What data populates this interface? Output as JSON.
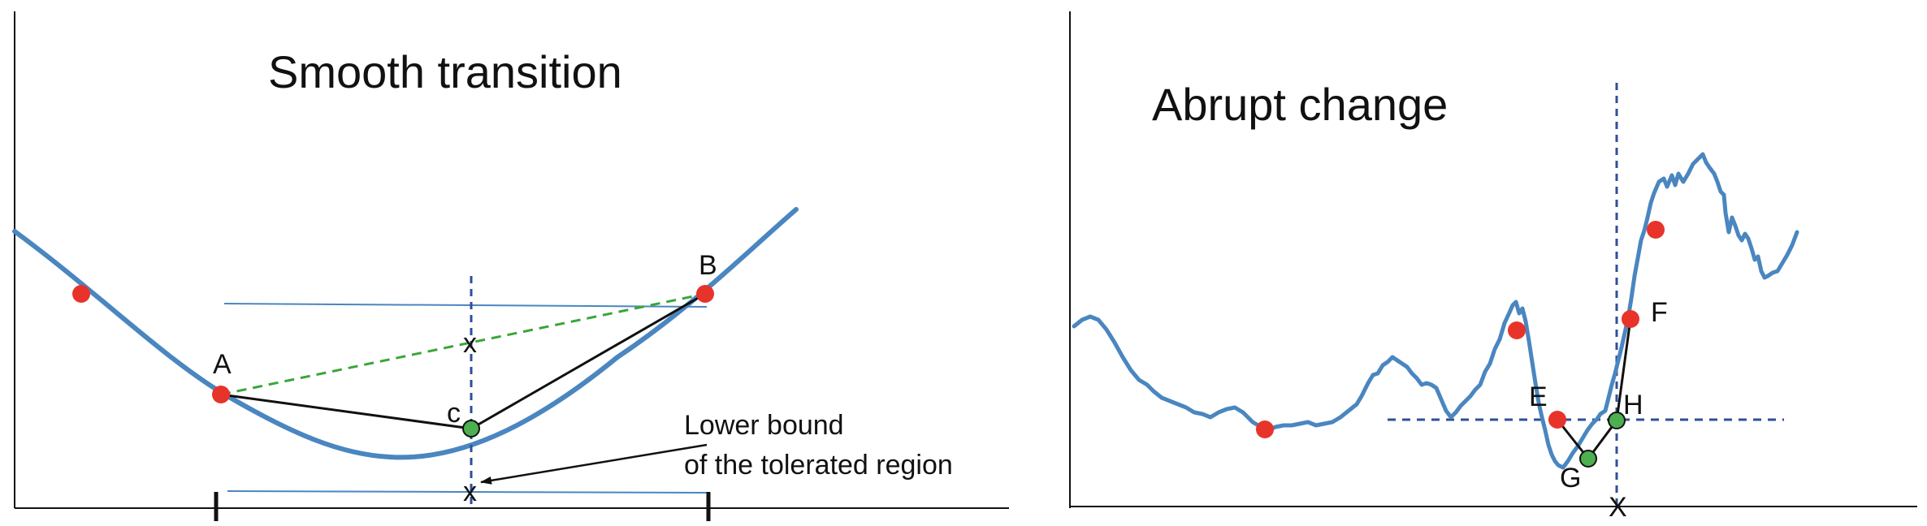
{
  "colors": {
    "curve": "#4a86c0",
    "red_point": "#e8332a",
    "green_point": "#4caf50",
    "dashed_blue": "#2e4f9a",
    "dashed_green": "#3aa63a",
    "axis": "#111111"
  },
  "left_panel": {
    "title": "Smooth transition",
    "labels": {
      "a": "A",
      "b": "B",
      "c": "c",
      "x_mid": "x",
      "x_low": "x"
    },
    "annotation": {
      "line1": "Lower bound",
      "line2": "of the tolerated region"
    }
  },
  "right_panel": {
    "title": "Abrupt change",
    "labels": {
      "e": "E",
      "f": "F",
      "g": "G",
      "h": "H",
      "x": "X"
    }
  }
}
